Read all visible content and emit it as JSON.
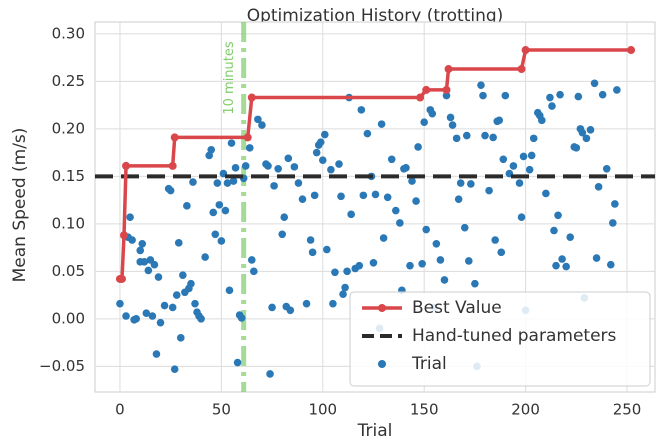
{
  "chart_data": {
    "type": "scatter",
    "title": "Optimization History (trotting)",
    "xlabel": "Trial",
    "ylabel": "Mean Speed (m/s)",
    "xlim": [
      -12.3,
      263.8
    ],
    "ylim": [
      -0.077,
      0.3125
    ],
    "xticks": [
      0,
      50,
      100,
      150,
      200,
      250
    ],
    "yticks": [
      {
        "value": -0.05,
        "label": "−0.05"
      },
      {
        "value": 0,
        "label": "0.00"
      },
      {
        "value": 0.05,
        "label": "0.05"
      },
      {
        "value": 0.1,
        "label": "0.10"
      },
      {
        "value": 0.15,
        "label": "0.15"
      },
      {
        "value": 0.2,
        "label": "0.20"
      },
      {
        "value": 0.25,
        "label": "0.25"
      },
      {
        "value": 0.3,
        "label": "0.30"
      }
    ],
    "grid": true,
    "legend": "lower right",
    "annotations": [
      {
        "text": "10 minutes",
        "x": 61,
        "color": "#7fcc6a"
      }
    ],
    "series": [
      {
        "name": "Best Value",
        "type": "line",
        "color": "#d9474a",
        "x": [
          0,
          1,
          2,
          3,
          26,
          27,
          63,
          65,
          148,
          151,
          161,
          162,
          198,
          200,
          252
        ],
        "values": [
          0.042,
          0.042,
          0.088,
          0.161,
          0.161,
          0.191,
          0.191,
          0.233,
          0.233,
          0.241,
          0.241,
          0.263,
          0.263,
          0.283,
          0.283
        ]
      },
      {
        "name": "Hand-tuned parameters",
        "type": "hline",
        "color": "#2b2b2b",
        "values": [
          0.15
        ]
      },
      {
        "name": "Trial",
        "type": "scatter",
        "color": "#2a78b5",
        "x": [
          0,
          3,
          4,
          5,
          6,
          7,
          8,
          10,
          10,
          11,
          12,
          13,
          14,
          15,
          16,
          17,
          18,
          19,
          20,
          22,
          24,
          25,
          26,
          27,
          28,
          29,
          30,
          31,
          32,
          33,
          34,
          35,
          36,
          37,
          38,
          39,
          40,
          42,
          44,
          45,
          46,
          47,
          48,
          49,
          50,
          51,
          52,
          53,
          54,
          55,
          56,
          57,
          58,
          59,
          60,
          61,
          62,
          64,
          65,
          66,
          68,
          70,
          72,
          73,
          74,
          75,
          76,
          78,
          80,
          81,
          82,
          83,
          84,
          86,
          88,
          90,
          92,
          94,
          95,
          96,
          97,
          98,
          99,
          100,
          101,
          102,
          104,
          105,
          106,
          108,
          109,
          110,
          111,
          112,
          113,
          114,
          116,
          118,
          119,
          120,
          122,
          124,
          125,
          126,
          128,
          129,
          130,
          132,
          134,
          136,
          138,
          139,
          140,
          141,
          143,
          144,
          146,
          147,
          149,
          150,
          151,
          153,
          154,
          155,
          156,
          158,
          160,
          161,
          163,
          164,
          166,
          167,
          168,
          170,
          171,
          172,
          173,
          175,
          176,
          178,
          179,
          180,
          182,
          184,
          185,
          186,
          187,
          188,
          189,
          190,
          192,
          194,
          197,
          198,
          199,
          200,
          202,
          203,
          204,
          206,
          207,
          208,
          210,
          212,
          213,
          214,
          215,
          216,
          217,
          218,
          220,
          222,
          224,
          225,
          226,
          227,
          228,
          229,
          230,
          232,
          234,
          235,
          236,
          238,
          240,
          242,
          243,
          244,
          245
        ],
        "values": [
          0.016,
          0.003,
          0.086,
          0.107,
          0.083,
          -0.001,
          0.0,
          0.072,
          0.06,
          0.079,
          0.06,
          0.006,
          0.051,
          0.062,
          0.003,
          0.057,
          -0.037,
          0.044,
          -0.004,
          0.014,
          0.137,
          0.135,
          0.012,
          -0.053,
          0.025,
          0.08,
          -0.02,
          0.046,
          0.028,
          0.119,
          0.032,
          0.037,
          0.144,
          0.016,
          0.007,
          0.003,
          0.0,
          0.065,
          0.172,
          0.178,
          0.112,
          0.089,
          0.143,
          0.12,
          0.082,
          0.153,
          0.114,
          0.143,
          0.03,
          0.185,
          0.145,
          0.159,
          -0.046,
          0.004,
          0.001,
          0.148,
          0.161,
          0.18,
          0.062,
          0.05,
          0.21,
          0.204,
          0.163,
          0.161,
          -0.058,
          0.012,
          0.14,
          0.158,
          0.089,
          0.107,
          0.013,
          0.169,
          0.009,
          0.16,
          0.143,
          0.126,
          0.016,
          0.083,
          0.07,
          0.13,
          0.175,
          0.183,
          0.186,
          0.167,
          0.194,
          0.073,
          0.157,
          0.016,
          0.049,
          0.163,
          0.129,
          0.026,
          0.033,
          0.05,
          0.233,
          0.11,
          0.053,
          0.056,
          0.22,
          0.13,
          0.195,
          0.15,
          0.059,
          0.131,
          -0.01,
          0.205,
          0.085,
          0.128,
          0.168,
          0.114,
          0.101,
          0.03,
          0.158,
          0.159,
          0.056,
          0.145,
          0.124,
          0.181,
          0.058,
          0.207,
          0.094,
          0.22,
          0.216,
          0.012,
          0.079,
          0.062,
          0.041,
          0.235,
          0.212,
          0.204,
          0.19,
          0.126,
          0.143,
          0.096,
          0.193,
          0.061,
          0.142,
          0.037,
          -0.05,
          0.246,
          0.235,
          0.193,
          0.135,
          0.191,
          0.083,
          0.208,
          0.209,
          0.07,
          0.168,
          0.235,
          0.153,
          0.161,
          0.143,
          0.107,
          0.171,
          0.009,
          0.157,
          0.172,
          0.19,
          0.217,
          0.214,
          0.209,
          0.132,
          0.233,
          0.224,
          0.093,
          0.056,
          0.109,
          0.236,
          0.063,
          0.055,
          0.086,
          0.181,
          0.18,
          0.234,
          0.2,
          0.196,
          0.022,
          0.19,
          0.199,
          0.248,
          0.064,
          0.139,
          0.236,
          0.158,
          0.057,
          0.101,
          0.121,
          0.241
        ]
      }
    ]
  }
}
